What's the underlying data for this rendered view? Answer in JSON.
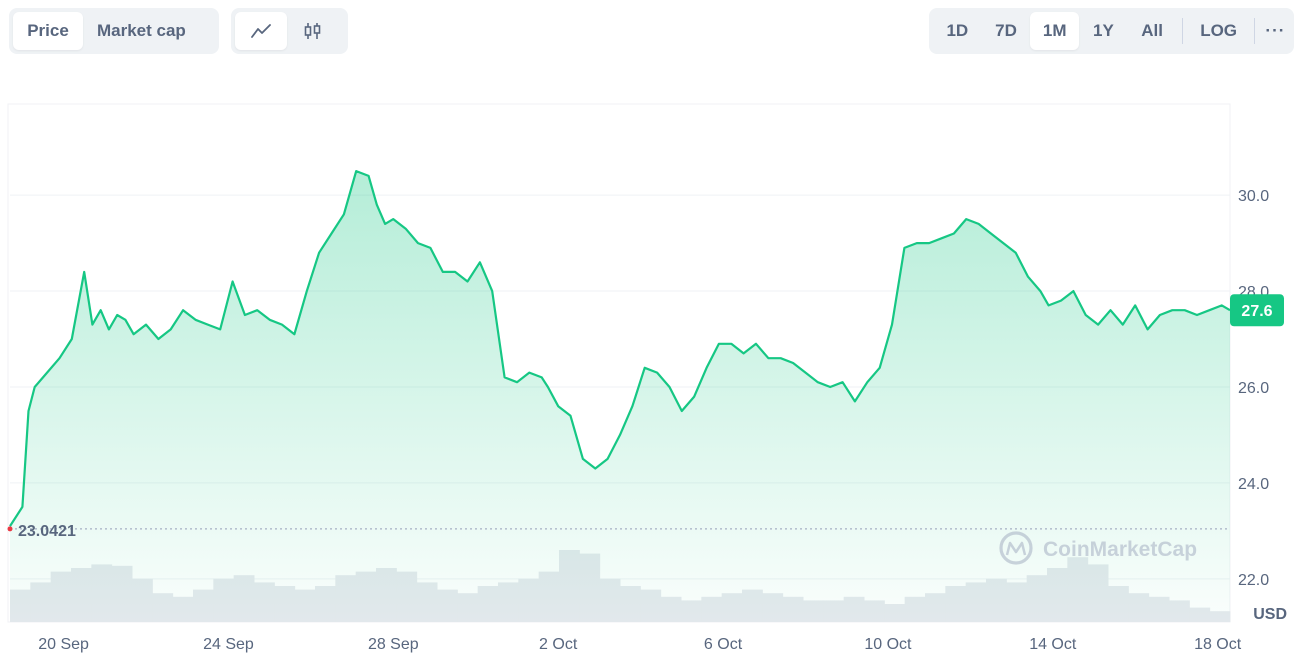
{
  "toolbar": {
    "type_buttons": [
      "Price",
      "Market cap"
    ],
    "active_type": "Price",
    "view_icons": [
      "line-chart-icon",
      "candlestick-icon"
    ],
    "active_view": "line-chart-icon",
    "ranges": [
      "1D",
      "7D",
      "1M",
      "1Y",
      "All"
    ],
    "active_range": "1M",
    "log_label": "LOG",
    "more_label": "···"
  },
  "watermark": "CoinMarketCap",
  "colors": {
    "line": "#16c784",
    "current_bg": "#16c784",
    "baseline": "#a6b0c3",
    "grid": "#eff2f5"
  },
  "chart_data": {
    "type": "area",
    "currency_label": "USD",
    "y_ticks": [
      22.0,
      24.0,
      26.0,
      28.0,
      30.0
    ],
    "ylim": [
      21.1,
      31.9
    ],
    "x_ticks": [
      "20 Sep",
      "24 Sep",
      "28 Sep",
      "2 Oct",
      "6 Oct",
      "10 Oct",
      "14 Oct",
      "18 Oct"
    ],
    "x_tick_days": [
      1.3,
      5.3,
      9.3,
      13.3,
      17.3,
      21.3,
      25.3,
      29.3
    ],
    "xlim_days": [
      0,
      29.6
    ],
    "open_price_label": "23.0421",
    "open_price": 23.0421,
    "current_price_label": "27.6",
    "current_price": 27.6,
    "series": [
      {
        "x_days": [
          0.0,
          0.3,
          0.45,
          0.6,
          0.8,
          1.2,
          1.5,
          1.8,
          2.0,
          2.2,
          2.4,
          2.6,
          2.8,
          3.0,
          3.3,
          3.6,
          3.9,
          4.2,
          4.5,
          4.8,
          5.1,
          5.4,
          5.7,
          6.0,
          6.3,
          6.6,
          6.9,
          7.2,
          7.5,
          7.8,
          8.1,
          8.4,
          8.7,
          8.9,
          9.1,
          9.3,
          9.6,
          9.9,
          10.2,
          10.5,
          10.8,
          11.1,
          11.4,
          11.7,
          12.0,
          12.3,
          12.6,
          12.9,
          13.05,
          13.3,
          13.6,
          13.9,
          14.2,
          14.5,
          14.8,
          15.1,
          15.4,
          15.7,
          16.0,
          16.3,
          16.6,
          16.9,
          17.2,
          17.5,
          17.8,
          18.1,
          18.4,
          18.7,
          19.0,
          19.3,
          19.6,
          19.9,
          20.2,
          20.5,
          20.8,
          21.1,
          21.4,
          21.7,
          22.0,
          22.3,
          22.6,
          22.9,
          23.2,
          23.5,
          23.8,
          24.1,
          24.4,
          24.7,
          25.0,
          25.2,
          25.5,
          25.8,
          26.1,
          26.4,
          26.7,
          27.0,
          27.3,
          27.6,
          27.9,
          28.2,
          28.5,
          28.8,
          29.1,
          29.4,
          29.6
        ],
        "values": [
          23.1,
          23.5,
          25.5,
          26.0,
          26.2,
          26.6,
          27.0,
          28.4,
          27.3,
          27.6,
          27.2,
          27.5,
          27.4,
          27.1,
          27.3,
          27.0,
          27.2,
          27.6,
          27.4,
          27.3,
          27.2,
          28.2,
          27.5,
          27.6,
          27.4,
          27.3,
          27.1,
          28.0,
          28.8,
          29.2,
          29.6,
          30.5,
          30.4,
          29.8,
          29.4,
          29.5,
          29.3,
          29.0,
          28.9,
          28.4,
          28.4,
          28.2,
          28.6,
          28.0,
          26.2,
          26.1,
          26.3,
          26.2,
          26.0,
          25.6,
          25.4,
          24.5,
          24.3,
          24.5,
          25.0,
          25.6,
          26.4,
          26.3,
          26.0,
          25.5,
          25.8,
          26.4,
          26.9,
          26.9,
          26.7,
          26.9,
          26.6,
          26.6,
          26.5,
          26.3,
          26.1,
          26.0,
          26.1,
          25.7,
          26.1,
          26.4,
          27.3,
          28.9,
          29.0,
          29.0,
          29.1,
          29.2,
          29.5,
          29.4,
          29.2,
          29.0,
          28.8,
          28.3,
          28.0,
          27.7,
          27.8,
          28.0,
          27.5,
          27.3,
          27.6,
          27.3,
          27.7,
          27.2,
          27.5,
          27.6,
          27.6,
          27.5,
          27.6,
          27.7,
          27.6
        ]
      }
    ],
    "volume_fraction": [
      0.45,
      0.55,
      0.7,
      0.75,
      0.8,
      0.78,
      0.6,
      0.4,
      0.35,
      0.45,
      0.6,
      0.65,
      0.55,
      0.5,
      0.45,
      0.5,
      0.65,
      0.7,
      0.75,
      0.7,
      0.55,
      0.45,
      0.4,
      0.5,
      0.55,
      0.6,
      0.7,
      1.0,
      0.95,
      0.6,
      0.5,
      0.45,
      0.35,
      0.3,
      0.35,
      0.4,
      0.45,
      0.4,
      0.35,
      0.3,
      0.3,
      0.35,
      0.3,
      0.25,
      0.35,
      0.4,
      0.5,
      0.55,
      0.6,
      0.55,
      0.65,
      0.75,
      0.9,
      0.8,
      0.5,
      0.4,
      0.35,
      0.3,
      0.2,
      0.15
    ]
  }
}
